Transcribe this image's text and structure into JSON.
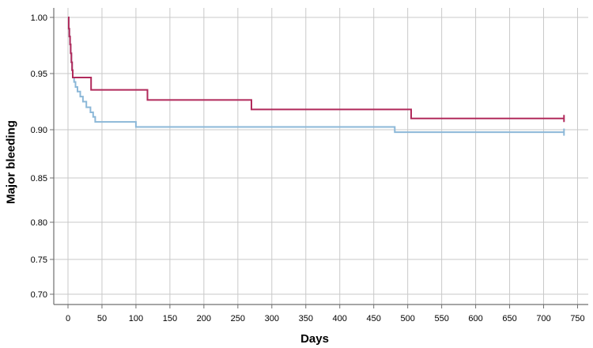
{
  "chart_data": {
    "type": "line",
    "subtype": "kaplan-meier-step",
    "title": "",
    "xlabel": "Days",
    "ylabel": "Major bleeding",
    "xlim": [
      0,
      750
    ],
    "xticks": [
      0,
      50,
      100,
      150,
      200,
      250,
      300,
      350,
      400,
      450,
      500,
      550,
      600,
      650,
      700,
      750
    ],
    "ylim": [
      0.7,
      1.0
    ],
    "yticks": [
      "1.00",
      "0.95",
      "0.90",
      "0.85",
      "0.80",
      "0.75",
      "0.70"
    ],
    "grid": true,
    "legend": "none",
    "colors": {
      "series_red": "#b12a5b",
      "series_blue": "#8cb8d8",
      "gridline": "#c9c9c9",
      "axis": "#707070",
      "tick_text": "#000000"
    },
    "series": [
      {
        "name": "red-curve",
        "color_key": "series_red",
        "end_day": 730,
        "censor_at_end": true,
        "steps": [
          [
            0,
            1.0
          ],
          [
            1,
            0.99
          ],
          [
            2,
            0.983
          ],
          [
            3,
            0.976
          ],
          [
            4,
            0.968
          ],
          [
            5,
            0.96
          ],
          [
            6,
            0.953
          ],
          [
            7,
            0.9465
          ],
          [
            34,
            0.9355
          ],
          [
            117,
            0.9265
          ],
          [
            270,
            0.918
          ],
          [
            505,
            0.91
          ]
        ]
      },
      {
        "name": "blue-curve",
        "color_key": "series_blue",
        "end_day": 730,
        "censor_at_end": true,
        "steps": [
          [
            0,
            1.0
          ],
          [
            1,
            0.99
          ],
          [
            2,
            0.983
          ],
          [
            3,
            0.976
          ],
          [
            4,
            0.968
          ],
          [
            5,
            0.96
          ],
          [
            6,
            0.953
          ],
          [
            7,
            0.9465
          ],
          [
            9,
            0.9425
          ],
          [
            11,
            0.938
          ],
          [
            14,
            0.934
          ],
          [
            18,
            0.9295
          ],
          [
            22,
            0.925
          ],
          [
            27,
            0.92
          ],
          [
            33,
            0.9155
          ],
          [
            37,
            0.9115
          ],
          [
            40,
            0.907
          ],
          [
            100,
            0.9025
          ],
          [
            481,
            0.8975
          ]
        ]
      }
    ]
  }
}
